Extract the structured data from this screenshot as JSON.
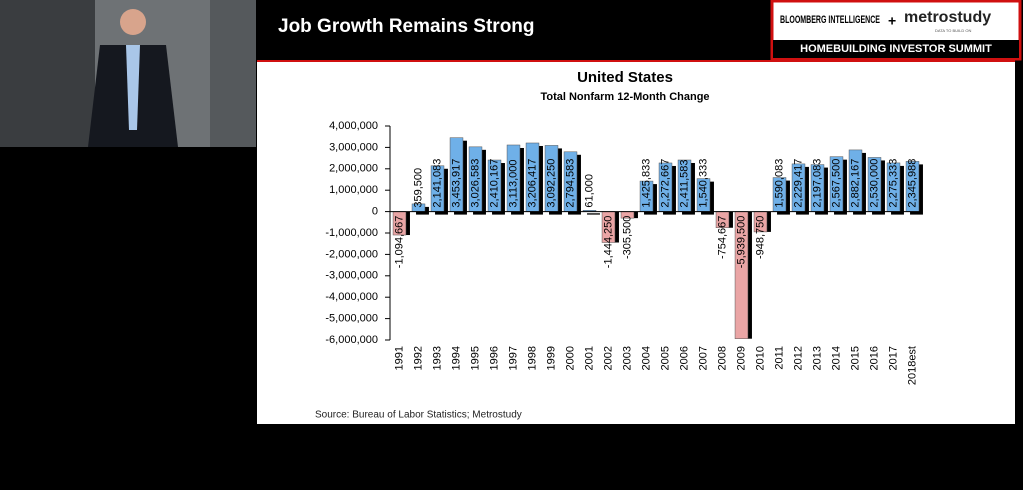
{
  "slide": {
    "title": "Job Growth Remains Strong",
    "logo": {
      "brand": "BLOOMBERG INTELLIGENCE",
      "plus": "+",
      "partner": "metrostudy",
      "tagline": "DATA TO BUILD ON",
      "event": "HOMEBUILDING INVESTOR SUMMIT"
    }
  },
  "chart_data": {
    "type": "bar",
    "title": "United States",
    "subtitle": "Total Nonfarm 12-Month Change",
    "source": "Source: Bureau of Labor Statistics; Metrostudy",
    "categories": [
      "1991",
      "1992",
      "1993",
      "1994",
      "1995",
      "1996",
      "1997",
      "1998",
      "1999",
      "2000",
      "2001",
      "2002",
      "2003",
      "2004",
      "2005",
      "2006",
      "2007",
      "2008",
      "2009",
      "2010",
      "2011",
      "2012",
      "2013",
      "2014",
      "2015",
      "2016",
      "2017",
      "2018est"
    ],
    "values": [
      -1094667,
      359500,
      2141083,
      3453917,
      3026583,
      2410167,
      3113000,
      3206417,
      3092250,
      2794583,
      61000,
      -1444250,
      -305500,
      1425833,
      2272667,
      2411583,
      1540333,
      -754667,
      -5939500,
      -948750,
      1590083,
      2229417,
      2197083,
      2567500,
      2882167,
      2530000,
      2275333,
      2345988
    ],
    "value_labels": [
      "-1,094,667",
      "359,500",
      "2,141,083",
      "3,453,917",
      "3,026,583",
      "2,410,167",
      "3,113,000",
      "3,206,417",
      "3,092,250",
      "2,794,583",
      "61,000",
      "-1,444,250",
      "-305,500",
      "1,425,833",
      "2,272,667",
      "2,411,583",
      "1,540,333",
      "-754,667",
      "-5,939,500",
      "-948,750",
      "1,590,083",
      "2,229,417",
      "2,197,083",
      "2,567,500",
      "2,882,167",
      "2,530,000",
      "2,275,333",
      "2,345,988"
    ],
    "positive_color": "#6fb0e8",
    "negative_color": "#eaa5a5",
    "ylim": [
      -6000000,
      4000000
    ],
    "yticks": [
      {
        "value": -6000000,
        "label": "-6,000,000"
      },
      {
        "value": -5000000,
        "label": "-5,000,000"
      },
      {
        "value": -4000000,
        "label": "-4,000,000"
      },
      {
        "value": -3000000,
        "label": "-3,000,000"
      },
      {
        "value": -2000000,
        "label": "-2,000,000"
      },
      {
        "value": -1000000,
        "label": "-1,000,000"
      },
      0,
      {
        "value": 1000000,
        "label": "1,000,000"
      },
      {
        "value": 2000000,
        "label": "2,000,000"
      },
      {
        "value": 3000000,
        "label": "3,000,000"
      },
      {
        "value": 4000000,
        "label": "4,000,000"
      }
    ],
    "grid": false
  }
}
